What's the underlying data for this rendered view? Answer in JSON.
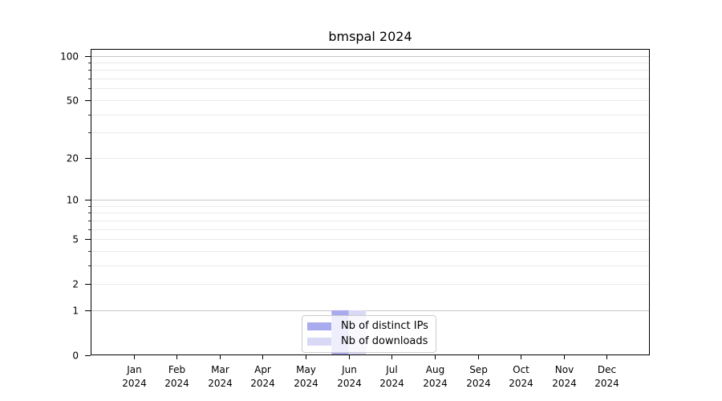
{
  "chart_data": {
    "type": "bar",
    "title": "bmspal 2024",
    "x": {
      "months": [
        "Jan",
        "Feb",
        "Mar",
        "Apr",
        "May",
        "Jun",
        "Jul",
        "Aug",
        "Sep",
        "Oct",
        "Nov",
        "Dec"
      ],
      "year": "2024"
    },
    "series": [
      {
        "name": "Nb of distinct IPs",
        "color": "#aaaaee",
        "values": [
          0,
          0,
          0,
          0,
          0,
          1,
          0,
          0,
          0,
          0,
          0,
          0
        ]
      },
      {
        "name": "Nb of downloads",
        "color": "#d9d9f5",
        "values": [
          0,
          0,
          0,
          0,
          0,
          1,
          0,
          0,
          0,
          0,
          0,
          0
        ]
      }
    ],
    "y_axis": {
      "scale": "log10(1+v)",
      "tick_values": [
        0,
        1,
        2,
        5,
        10,
        20,
        50,
        100
      ],
      "major_grid_values": [
        1,
        10,
        100
      ],
      "minor_grid_values": [
        2,
        3,
        4,
        5,
        6,
        7,
        8,
        9,
        20,
        30,
        40,
        50,
        60,
        70,
        80,
        90
      ],
      "ylim": [
        0,
        120
      ]
    },
    "legend_position": "bottom-center",
    "style": {
      "axis_color": "#000000",
      "major_grid_color": "#c6c6c6",
      "minor_grid_color": "#eaeaea",
      "legend_border_color": "#cccccc",
      "background": "#ffffff"
    }
  }
}
